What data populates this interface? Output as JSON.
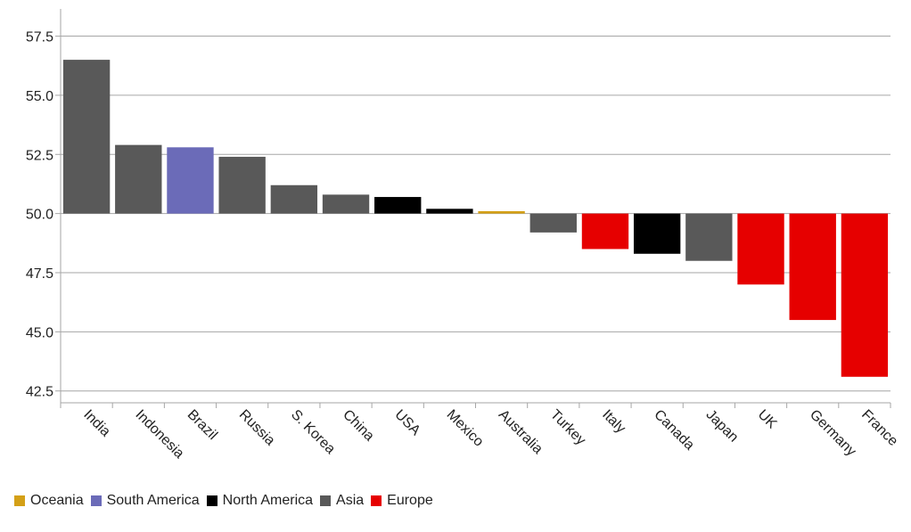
{
  "chart_data": {
    "type": "bar",
    "title": "",
    "xlabel": "",
    "ylabel": "",
    "baseline": 50.0,
    "ylim": [
      42.0,
      58.5
    ],
    "yticks": [
      42.5,
      45.0,
      47.5,
      50.0,
      52.5,
      55.0,
      57.5
    ],
    "ytick_labels": [
      "42.5",
      "45.0",
      "47.5",
      "50.0",
      "52.5",
      "55.0",
      "57.5"
    ],
    "categories": [
      "India",
      "Indonesia",
      "Brazil",
      "Russia",
      "S. Korea",
      "China",
      "USA",
      "Mexico",
      "Australia",
      "Turkey",
      "Italy",
      "Canada",
      "Japan",
      "UK",
      "Germany",
      "France"
    ],
    "values": [
      56.5,
      52.9,
      52.8,
      52.4,
      51.2,
      50.8,
      50.7,
      50.2,
      50.1,
      49.2,
      48.5,
      48.3,
      48.0,
      47.0,
      45.5,
      43.1
    ],
    "regions": [
      "Asia",
      "Asia",
      "South America",
      "Asia",
      "Asia",
      "Asia",
      "North America",
      "North America",
      "Oceania",
      "Asia",
      "Europe",
      "North America",
      "Asia",
      "Europe",
      "Europe",
      "Europe"
    ],
    "grid": true,
    "legend_position": "bottom-left",
    "legend": [
      {
        "name": "Oceania",
        "color": "#d4a017"
      },
      {
        "name": "South America",
        "color": "#6b6bb8"
      },
      {
        "name": "North America",
        "color": "#000000"
      },
      {
        "name": "Asia",
        "color": "#595959"
      },
      {
        "name": "Europe",
        "color": "#e60000"
      }
    ]
  }
}
